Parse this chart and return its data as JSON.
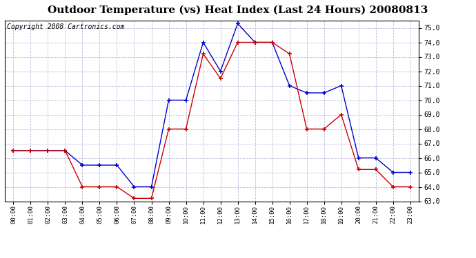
{
  "title": "Outdoor Temperature (vs) Heat Index (Last 24 Hours) 20080813",
  "copyright": "Copyright 2008 Cartronics.com",
  "x_labels": [
    "00:00",
    "01:00",
    "02:00",
    "03:00",
    "04:00",
    "05:00",
    "06:00",
    "07:00",
    "08:00",
    "09:00",
    "10:00",
    "11:00",
    "12:00",
    "13:00",
    "14:00",
    "15:00",
    "16:00",
    "17:00",
    "18:00",
    "19:00",
    "20:00",
    "21:00",
    "22:00",
    "23:00"
  ],
  "blue_data": [
    66.5,
    66.5,
    66.5,
    66.5,
    65.5,
    65.5,
    65.5,
    64.0,
    64.0,
    70.0,
    70.0,
    74.0,
    72.0,
    75.3,
    74.0,
    74.0,
    71.0,
    70.5,
    70.5,
    71.0,
    66.0,
    66.0,
    65.0,
    65.0
  ],
  "red_data": [
    66.5,
    66.5,
    66.5,
    66.5,
    64.0,
    64.0,
    64.0,
    63.2,
    63.2,
    68.0,
    68.0,
    73.2,
    71.5,
    74.0,
    74.0,
    74.0,
    73.2,
    68.0,
    68.0,
    69.0,
    65.2,
    65.2,
    64.0,
    64.0
  ],
  "ylim_min": 63.0,
  "ylim_max": 75.5,
  "yticks": [
    63.0,
    64.0,
    65.0,
    66.0,
    67.0,
    68.0,
    69.0,
    70.0,
    71.0,
    72.0,
    73.0,
    74.0,
    75.0
  ],
  "blue_color": "#0000CC",
  "red_color": "#CC0000",
  "bg_color": "#FFFFFF",
  "plot_bg": "#FFFFFF",
  "grid_color": "#BBBBDD",
  "title_fontsize": 11,
  "copyright_fontsize": 7
}
